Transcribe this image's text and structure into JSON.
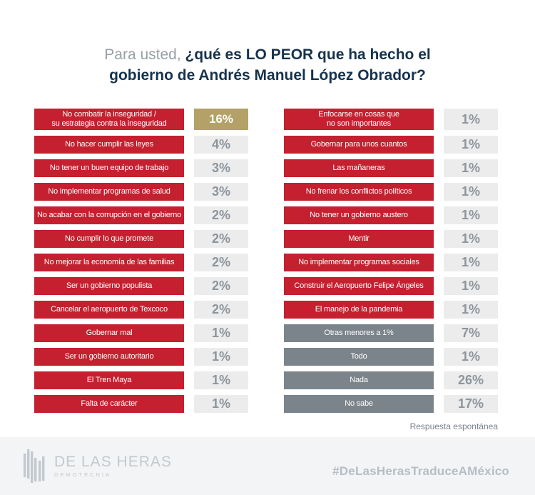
{
  "title": {
    "prefix": "Para usted, ",
    "question_line1": "¿qué es LO PEOR que ha hecho el",
    "question_line2": "gobierno de Andrés Manuel López Obrador?"
  },
  "chart_data": {
    "type": "bar",
    "title": "Para usted, ¿qué es LO PEOR que ha hecho el gobierno de Andrés Manuel López Obrador?",
    "unit": "%",
    "note": "Respuesta espontánea",
    "legend_position": "none",
    "grid": false,
    "colors": {
      "bar_red": "#c4202f",
      "bar_muted_gray": "#7b848b",
      "percent_box_bg": "#ececed",
      "percent_text": "#8d959c",
      "highlight_gold": "#b3a168",
      "title_navy": "#16334e",
      "title_prefix_gray": "#98a0a7",
      "footer_bg": "#f2f4f5",
      "footer_brand_gray": "#c3c9cf",
      "hashtag_gray": "#b7bdc5"
    },
    "columns": [
      {
        "rows": [
          {
            "label": "No combatir la inseguridad /\nsu estrategia contra la inseguridad",
            "value": 16,
            "display": "16%",
            "style": "highlight"
          },
          {
            "label": "No hacer cumplir las leyes",
            "value": 4,
            "display": "4%",
            "style": "normal"
          },
          {
            "label": "No tener un buen equipo de trabajo",
            "value": 3,
            "display": "3%",
            "style": "normal"
          },
          {
            "label": "No implementar programas de salud",
            "value": 3,
            "display": "3%",
            "style": "normal"
          },
          {
            "label": "No acabar con la corrupción en el gobierno",
            "value": 2,
            "display": "2%",
            "style": "normal"
          },
          {
            "label": "No cumplir lo que promete",
            "value": 2,
            "display": "2%",
            "style": "normal"
          },
          {
            "label": "No mejorar la economía de las familias",
            "value": 2,
            "display": "2%",
            "style": "normal"
          },
          {
            "label": "Ser un gobierno populista",
            "value": 2,
            "display": "2%",
            "style": "normal"
          },
          {
            "label": "Cancelar el aeropuerto de Texcoco",
            "value": 2,
            "display": "2%",
            "style": "normal"
          },
          {
            "label": "Gobernar mal",
            "value": 1,
            "display": "1%",
            "style": "normal"
          },
          {
            "label": "Ser un gobierno autoritario",
            "value": 1,
            "display": "1%",
            "style": "normal"
          },
          {
            "label": "El Tren Maya",
            "value": 1,
            "display": "1%",
            "style": "normal"
          },
          {
            "label": "Falta de carácter",
            "value": 1,
            "display": "1%",
            "style": "normal"
          }
        ]
      },
      {
        "rows": [
          {
            "label": "Enfocarse en cosas que\nno son importantes",
            "value": 1,
            "display": "1%",
            "style": "normal"
          },
          {
            "label": "Gobernar para unos cuantos",
            "value": 1,
            "display": "1%",
            "style": "normal"
          },
          {
            "label": "Las mañaneras",
            "value": 1,
            "display": "1%",
            "style": "normal"
          },
          {
            "label": "No frenar los conflictos políticos",
            "value": 1,
            "display": "1%",
            "style": "normal"
          },
          {
            "label": "No tener un gobierno austero",
            "value": 1,
            "display": "1%",
            "style": "normal"
          },
          {
            "label": "Mentir",
            "value": 1,
            "display": "1%",
            "style": "normal"
          },
          {
            "label": "No implementar programas sociales",
            "value": 1,
            "display": "1%",
            "style": "normal"
          },
          {
            "label": "Construir el Aeropuerto Felipe Ángeles",
            "value": 1,
            "display": "1%",
            "style": "normal"
          },
          {
            "label": "El manejo de la pandemia",
            "value": 1,
            "display": "1%",
            "style": "normal"
          },
          {
            "label": "Otras menores a 1%",
            "value": 7,
            "display": "7%",
            "style": "muted"
          },
          {
            "label": "Todo",
            "value": 1,
            "display": "1%",
            "style": "muted"
          },
          {
            "label": "Nada",
            "value": 26,
            "display": "26%",
            "style": "muted"
          },
          {
            "label": "No sabe",
            "value": 17,
            "display": "17%",
            "style": "muted"
          }
        ]
      }
    ]
  },
  "footer": {
    "brand_name": "DE LAS HERAS",
    "brand_subtitle": "DEMOTECNIA",
    "hashtag": "#DeLasHerasTraduceAMéxico"
  }
}
